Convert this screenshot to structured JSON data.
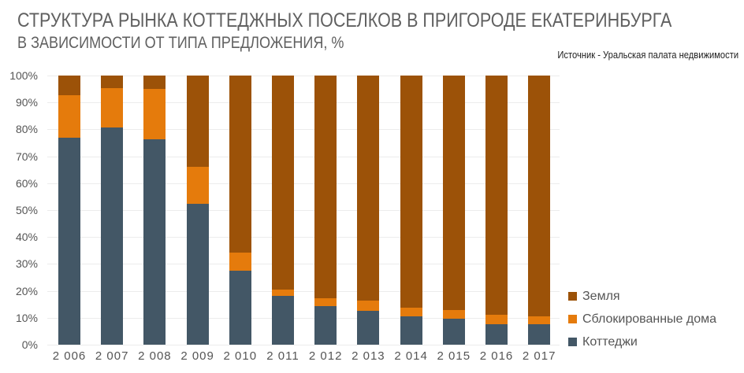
{
  "header": {
    "title": "СТРУКТУРА РЫНКА КОТТЕДЖНЫХ ПОСЕЛКОВ В ПРИГОРОДЕ ЕКАТЕРИНБУРГА",
    "subtitle": "В ЗАВИСИМОСТИ ОТ ТИПА ПРЕДЛОЖЕНИЯ, %",
    "source": "Источник - Уральская палата недвижимости"
  },
  "colors": {
    "zemlya": "#9C5208",
    "sblok": "#E57B0C",
    "kottedzhi": "#435766"
  },
  "yaxis": {
    "ticks": [
      "0%",
      "10%",
      "20%",
      "30%",
      "40%",
      "50%",
      "60%",
      "70%",
      "80%",
      "90%",
      "100%"
    ]
  },
  "legend": {
    "items": [
      {
        "label": "Земля",
        "color": "#9C5208"
      },
      {
        "label": "Сблокированные дома",
        "color": "#E57B0C"
      },
      {
        "label": "Коттеджи",
        "color": "#435766"
      }
    ]
  },
  "chart_data": {
    "type": "bar",
    "stacked": true,
    "percent_stacked": true,
    "title": "СТРУКТУРА РЫНКА КОТТЕДЖНЫХ ПОСЕЛКОВ В ПРИГОРОДЕ ЕКАТЕРИНБУРГА",
    "subtitle": "В ЗАВИСИМОСТИ ОТ ТИПА ПРЕДЛОЖЕНИЯ, %",
    "source": "Источник - Уральская палата недвижимости",
    "xlabel": "",
    "ylabel": "",
    "ylim": [
      0,
      100
    ],
    "grid": true,
    "legend_position": "right-bottom",
    "categories": [
      "2 006",
      "2 007",
      "2 008",
      "2 009",
      "2 010",
      "2 011",
      "2 012",
      "2 013",
      "2 014",
      "2 015",
      "2 016",
      "2 017"
    ],
    "series": [
      {
        "name": "Коттеджи",
        "color": "#435766",
        "values": [
          77.0,
          80.7,
          76.3,
          52.3,
          27.6,
          18.1,
          14.3,
          12.6,
          10.5,
          9.6,
          7.6,
          7.6
        ]
      },
      {
        "name": "Сблокированные дома",
        "color": "#E57B0C",
        "values": [
          15.8,
          14.7,
          18.8,
          13.8,
          6.7,
          2.4,
          3.0,
          3.9,
          3.3,
          3.4,
          3.6,
          2.9
        ]
      },
      {
        "name": "Земля",
        "color": "#9C5208",
        "values": [
          7.2,
          4.6,
          4.9,
          33.9,
          65.7,
          79.5,
          82.7,
          83.5,
          86.2,
          87.0,
          88.8,
          89.5
        ]
      }
    ]
  }
}
